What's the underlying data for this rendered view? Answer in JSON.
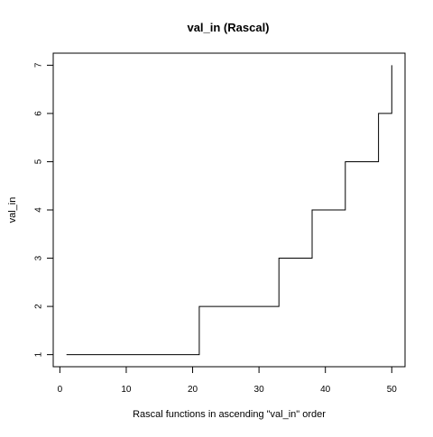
{
  "chart_data": {
    "type": "line",
    "title": "val_in (Rascal)",
    "xlabel": "Rascal functions in ascending \"val_in\" order",
    "ylabel": "val_in",
    "xlim": [
      -1,
      52
    ],
    "ylim": [
      0.75,
      7.25
    ],
    "x_ticks": [
      0,
      10,
      20,
      30,
      40,
      50
    ],
    "y_ticks": [
      1,
      2,
      3,
      4,
      5,
      6,
      7
    ],
    "grid": false,
    "legend": "none",
    "line_color": "#000000",
    "step_points": [
      {
        "x": 1,
        "y": 1
      },
      {
        "x": 21,
        "y": 1
      },
      {
        "x": 21,
        "y": 2
      },
      {
        "x": 33,
        "y": 2
      },
      {
        "x": 33,
        "y": 3
      },
      {
        "x": 38,
        "y": 3
      },
      {
        "x": 38,
        "y": 4
      },
      {
        "x": 43,
        "y": 4
      },
      {
        "x": 43,
        "y": 5
      },
      {
        "x": 48,
        "y": 5
      },
      {
        "x": 48,
        "y": 6
      },
      {
        "x": 50,
        "y": 6
      },
      {
        "x": 50,
        "y": 7
      }
    ]
  }
}
